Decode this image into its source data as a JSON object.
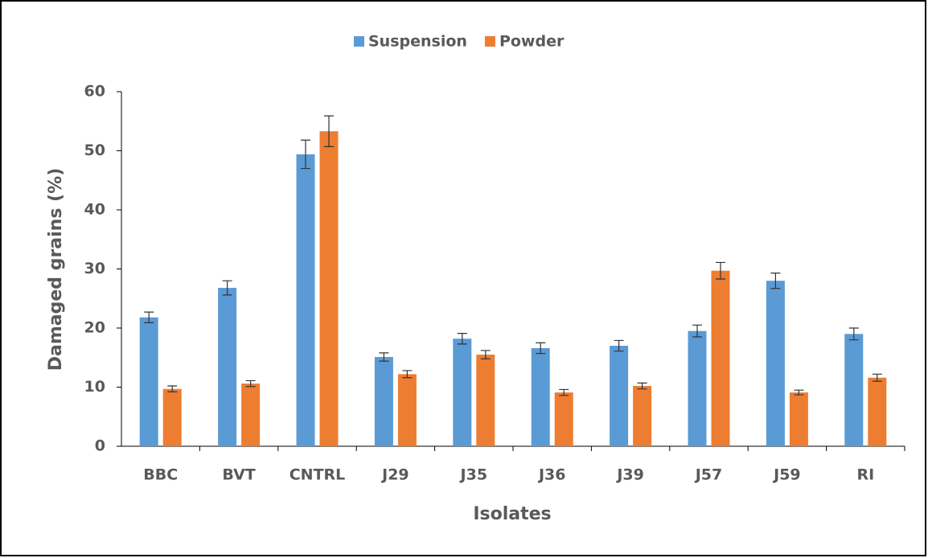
{
  "chart_data": {
    "type": "bar",
    "x_label": "Isolates",
    "y_label": "Damaged grains (%)",
    "categories": [
      "BBC",
      "BVT",
      "CNTRL",
      "J29",
      "J35",
      "J36",
      "J39",
      "J57",
      "J59",
      "RI"
    ],
    "series": [
      {
        "name": "Suspension",
        "color": "#5b9bd5",
        "values": [
          21.8,
          26.8,
          49.4,
          15.1,
          18.2,
          16.6,
          17.0,
          19.5,
          28.0,
          19.0
        ],
        "errors": [
          0.9,
          1.2,
          2.4,
          0.7,
          0.9,
          0.9,
          0.9,
          1.0,
          1.3,
          1.0
        ]
      },
      {
        "name": "Powder",
        "color": "#ed7d31",
        "values": [
          9.7,
          10.6,
          53.3,
          12.2,
          15.5,
          9.1,
          10.2,
          29.7,
          9.1,
          11.6
        ],
        "errors": [
          0.5,
          0.5,
          2.6,
          0.6,
          0.7,
          0.5,
          0.5,
          1.4,
          0.4,
          0.6
        ]
      }
    ],
    "ylim": [
      0,
      60
    ],
    "yticks": [
      0,
      10,
      20,
      30,
      40,
      50,
      60
    ],
    "legend": "top"
  }
}
